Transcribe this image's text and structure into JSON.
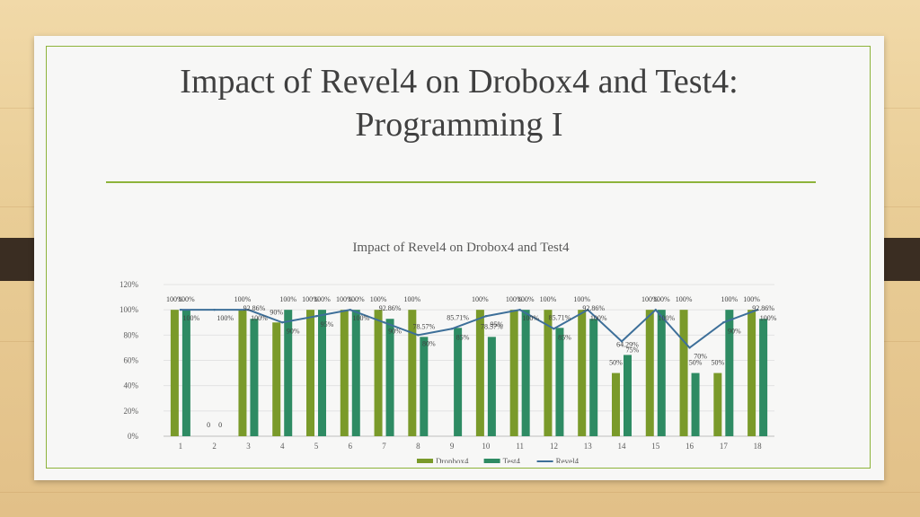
{
  "slide": {
    "title_line1": "Impact of Revel4 on Drobox4 and Test4:",
    "title_line2": "Programming I"
  },
  "colors": {
    "dropbox": "#7a9a2a",
    "test": "#2e8b63",
    "revel": "#3d6f99",
    "accent": "#8db33a"
  },
  "chart_data": {
    "type": "bar",
    "title": "Impact of Revel4 on Drobox4 and Test4",
    "xlabel": "",
    "ylabel": "",
    "ylim": [
      0,
      1.2
    ],
    "yticks": [
      "0%",
      "20%",
      "40%",
      "60%",
      "80%",
      "100%",
      "120%"
    ],
    "categories": [
      "1",
      "2",
      "3",
      "4",
      "5",
      "6",
      "7",
      "8",
      "9",
      "10",
      "11",
      "12",
      "13",
      "14",
      "15",
      "16",
      "17",
      "18"
    ],
    "grid": true,
    "legend": "bottom",
    "series": [
      {
        "name": "Dropbox4",
        "kind": "bar",
        "values": [
          1.0,
          0,
          1.0,
          0.9,
          1.0,
          1.0,
          1.0,
          1.0,
          null,
          1.0,
          1.0,
          1.0,
          1.0,
          0.5,
          1.0,
          1.0,
          0.5,
          1.0
        ],
        "labels": [
          "100%",
          "0",
          "100%",
          "90%",
          "100%",
          "100%",
          "100%",
          "100%",
          "",
          "100%",
          "100%",
          "100%",
          "100%",
          "50%",
          "100%",
          "100%",
          "50%",
          "100%"
        ]
      },
      {
        "name": "Test4",
        "kind": "bar",
        "values": [
          1.0,
          0,
          0.9286,
          1.0,
          1.0,
          1.0,
          0.9286,
          0.7857,
          0.8571,
          0.7857,
          1.0,
          0.8571,
          0.9286,
          0.6429,
          1.0,
          0.5,
          1.0,
          0.9286
        ],
        "labels": [
          "100%",
          "0",
          "92.86%",
          "100%",
          "100%",
          "100%",
          "92.86%",
          "78.57%",
          "85.71%",
          "78.57%",
          "100%",
          "85.71%",
          "92.86%",
          "64.29%",
          "100%",
          "50%",
          "100%",
          "92.86%"
        ]
      },
      {
        "name": "Revel4",
        "kind": "line",
        "values": [
          1.0,
          1.0,
          1.0,
          0.9,
          0.95,
          1.0,
          0.9,
          0.8,
          0.85,
          0.95,
          1.0,
          0.85,
          1.0,
          0.75,
          1.0,
          0.7,
          0.9,
          1.0
        ],
        "labels": [
          "100%",
          "100%",
          "100%",
          "90%",
          "95%",
          "100%",
          "90%",
          "80%",
          "85%",
          "95%",
          "100%",
          "85%",
          "100%",
          "75%",
          "100%",
          "70%",
          "90%",
          "100%"
        ]
      }
    ]
  }
}
